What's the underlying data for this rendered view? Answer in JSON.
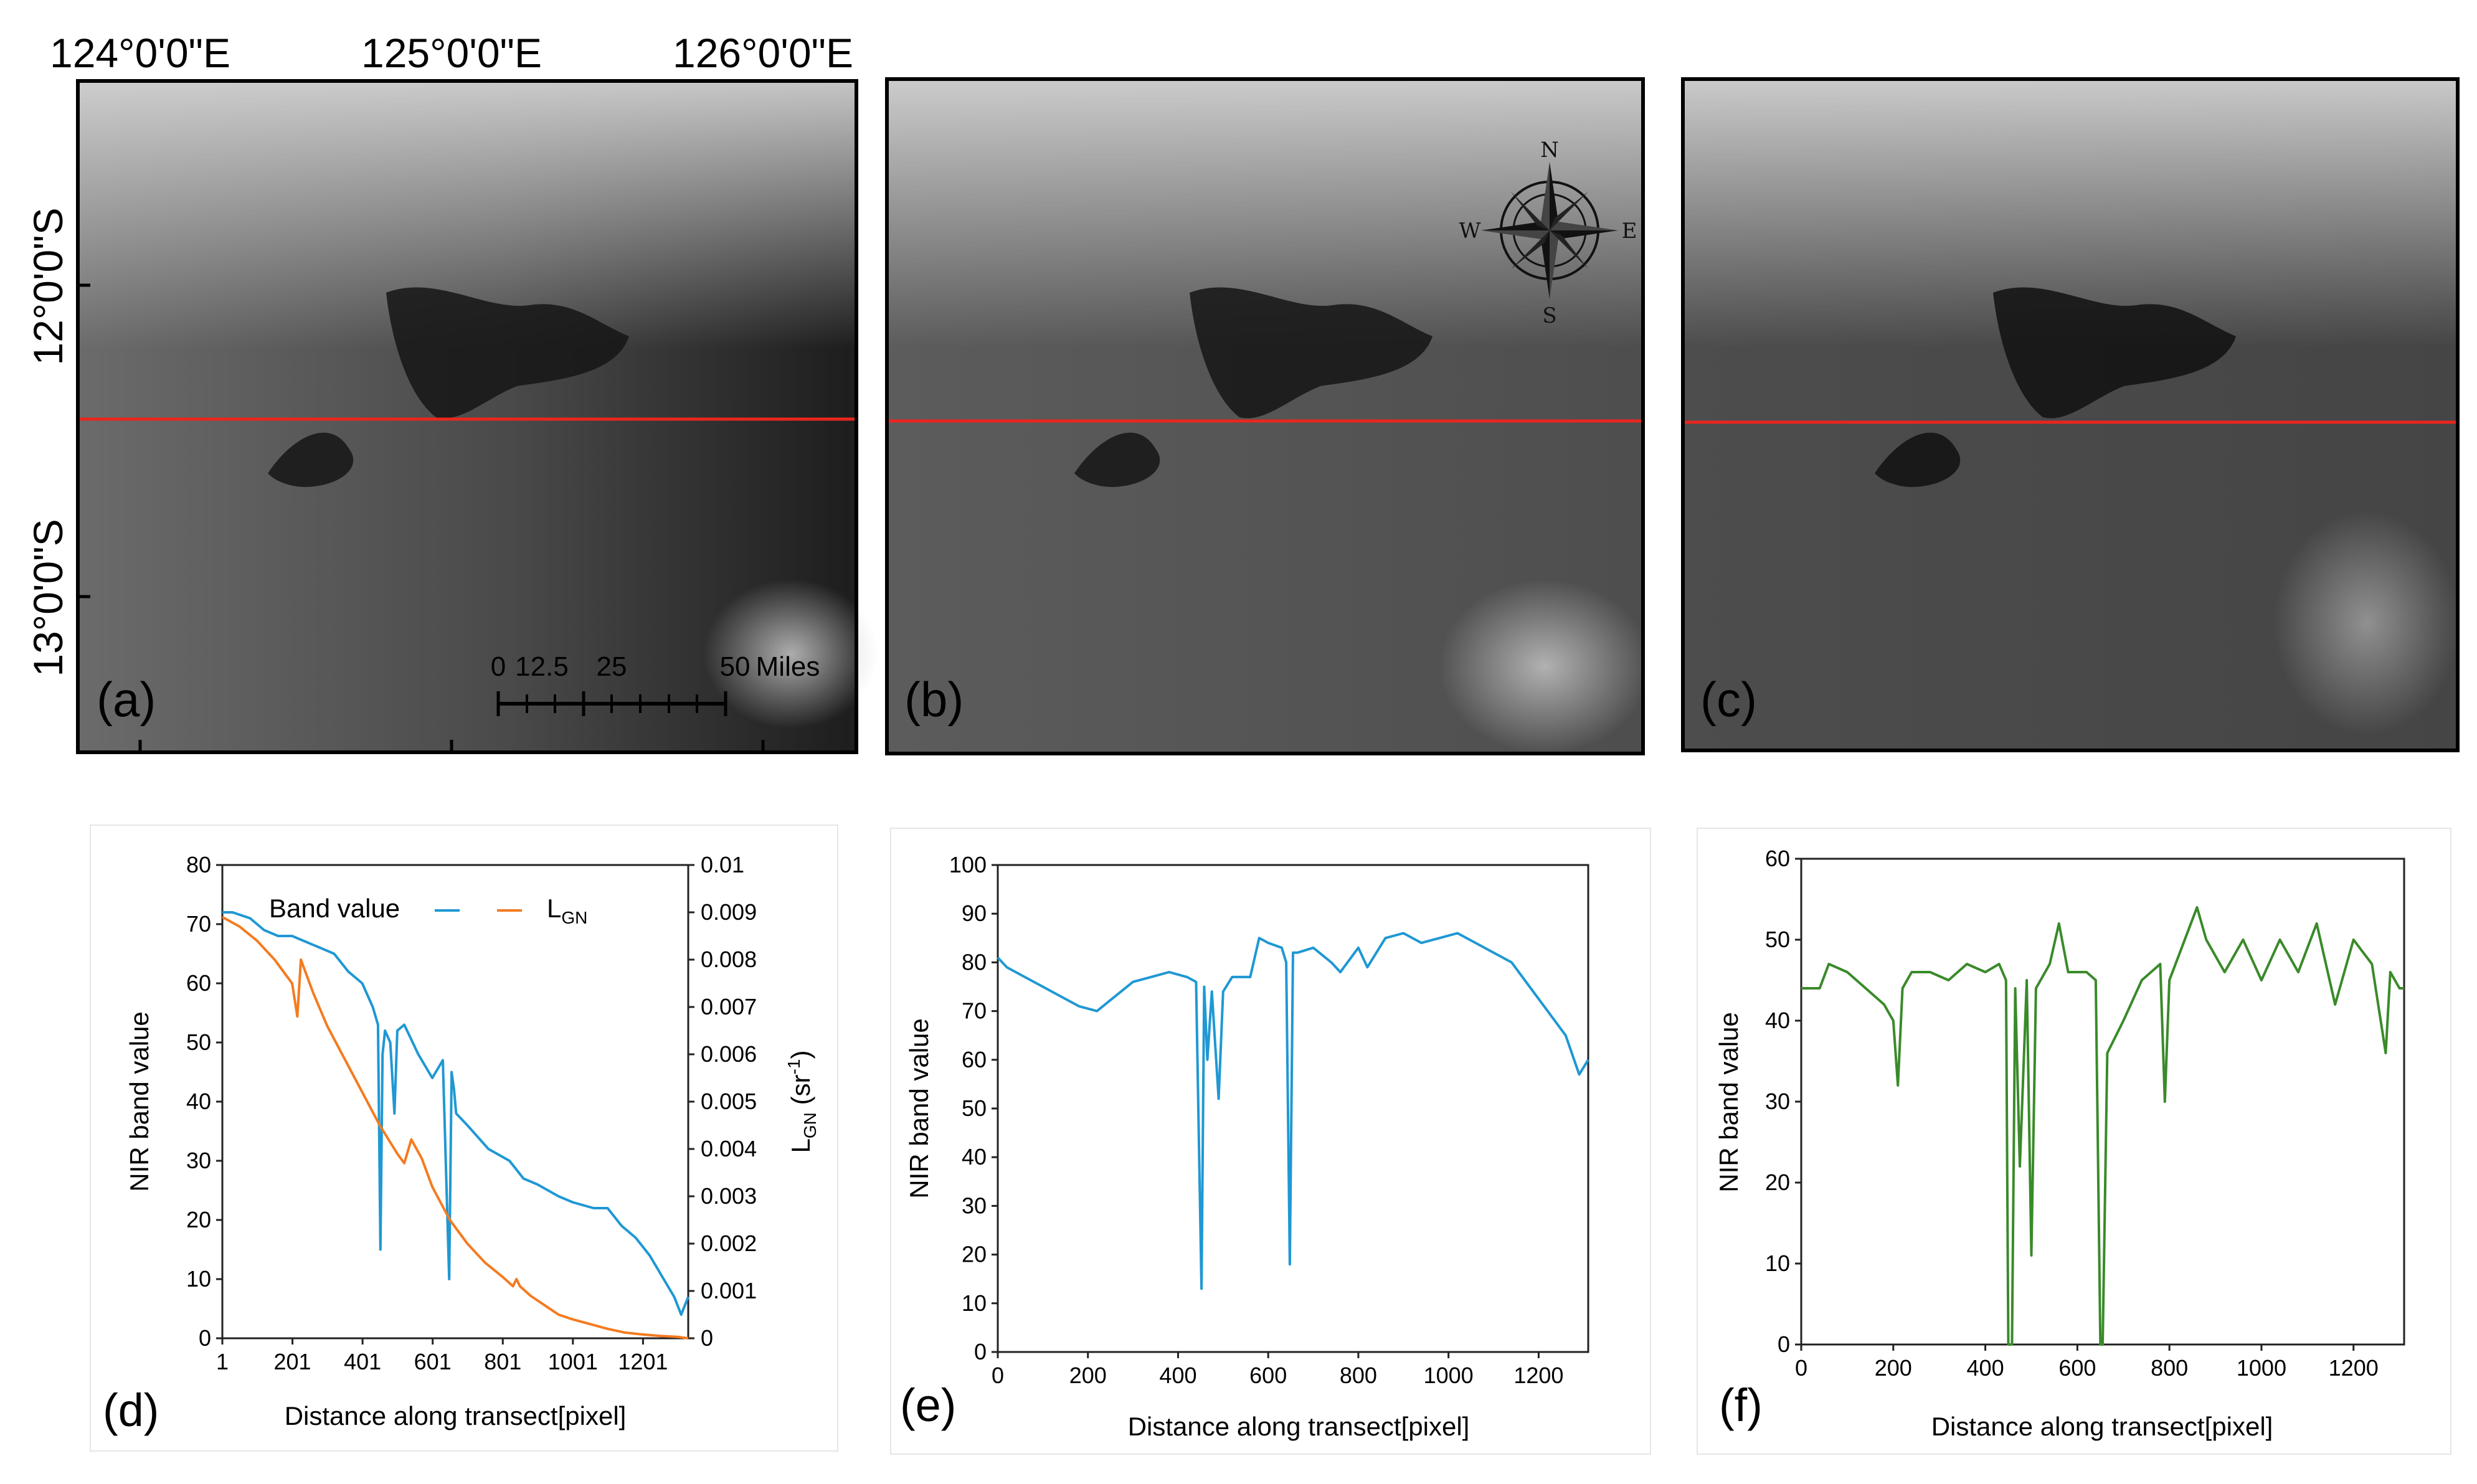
{
  "map_panels": {
    "lon_labels": [
      "124°0'0\"E",
      "125°0'0\"E",
      "126°0'0\"E"
    ],
    "lat_labels": [
      "12°0'0\"S",
      "13°0'0\"S"
    ],
    "labels": [
      "(a)",
      "(b)",
      "(c)"
    ],
    "scale_bar": {
      "numbers": [
        "0",
        "12.5",
        "25",
        "50"
      ],
      "unit": "Miles"
    },
    "compass": {
      "n": "N",
      "e": "E",
      "s": "S",
      "w": "W"
    },
    "transect_color": "#e8261f"
  },
  "chart_data": [
    {
      "panel": "(d)",
      "type": "line",
      "xlabel": "Distance along transect[pixel]",
      "ylabel": "NIR band value",
      "y2label": "L",
      "y2label_sub": "GN",
      "y2label_unit": " (sr",
      "y2label_sup": "-1",
      "y2label_close": ")",
      "xlim": [
        1,
        1330
      ],
      "ylim": [
        0,
        80
      ],
      "y2lim": [
        0,
        0.01
      ],
      "xticks": [
        "1",
        "201",
        "401",
        "601",
        "801",
        "1001",
        "1201"
      ],
      "yticks": [
        "0",
        "10",
        "20",
        "30",
        "40",
        "50",
        "60",
        "70",
        "80"
      ],
      "y2ticks": [
        "0",
        "0.001",
        "0.002",
        "0.003",
        "0.004",
        "0.005",
        "0.006",
        "0.007",
        "0.008",
        "0.009",
        "0.01"
      ],
      "legend_band": "Band value",
      "legend_lgn": "L",
      "legend_lgn_sub": "GN",
      "series": [
        {
          "name": "Band value",
          "axis": "left",
          "color": "#1f98d3",
          "x": [
            1,
            30,
            80,
            120,
            160,
            200,
            240,
            280,
            320,
            360,
            400,
            430,
            445,
            452,
            458,
            465,
            480,
            492,
            500,
            520,
            560,
            600,
            630,
            648,
            655,
            662,
            668,
            700,
            760,
            820,
            860,
            900,
            960,
            1000,
            1060,
            1100,
            1140,
            1180,
            1220,
            1260,
            1290,
            1310,
            1330
          ],
          "y": [
            72,
            72,
            71,
            69,
            68,
            68,
            67,
            66,
            65,
            62,
            60,
            56,
            53,
            15,
            48,
            52,
            50,
            38,
            52,
            53,
            48,
            44,
            47,
            10,
            45,
            42,
            38,
            36,
            32,
            30,
            27,
            26,
            24,
            23,
            22,
            22,
            19,
            17,
            14,
            10,
            7,
            4,
            7
          ]
        },
        {
          "name": "LGN",
          "axis": "right",
          "color": "#f47b20",
          "x": [
            1,
            50,
            100,
            150,
            200,
            215,
            225,
            235,
            260,
            300,
            350,
            400,
            450,
            500,
            520,
            540,
            555,
            570,
            600,
            650,
            700,
            750,
            800,
            830,
            840,
            850,
            880,
            920,
            960,
            1000,
            1050,
            1100,
            1150,
            1200,
            1250,
            1300,
            1330
          ],
          "y": [
            0.0089,
            0.0087,
            0.0084,
            0.008,
            0.0075,
            0.0068,
            0.008,
            0.0078,
            0.0073,
            0.0066,
            0.0059,
            0.0052,
            0.0045,
            0.0039,
            0.0037,
            0.0042,
            0.004,
            0.0038,
            0.0032,
            0.0025,
            0.002,
            0.0016,
            0.0013,
            0.0011,
            0.00125,
            0.0011,
            0.0009,
            0.0007,
            0.0005,
            0.0004,
            0.0003,
            0.0002,
            0.00012,
            8e-05,
            5e-05,
            3e-05,
            0.0
          ]
        }
      ]
    },
    {
      "panel": "(e)",
      "type": "line",
      "xlabel": "Distance along transect[pixel]",
      "ylabel": "NIR band  value",
      "xlim": [
        0,
        1310
      ],
      "ylim": [
        0,
        100
      ],
      "xticks": [
        "0",
        "200",
        "400",
        "600",
        "800",
        "1000",
        "1200"
      ],
      "yticks": [
        "0",
        "10",
        "20",
        "30",
        "40",
        "50",
        "60",
        "70",
        "80",
        "90",
        "100"
      ],
      "series": [
        {
          "name": "NIR band value",
          "color": "#1f98d3",
          "x": [
            0,
            20,
            60,
            100,
            140,
            180,
            220,
            260,
            300,
            340,
            380,
            420,
            440,
            452,
            458,
            465,
            475,
            490,
            500,
            520,
            560,
            580,
            600,
            630,
            640,
            648,
            655,
            665,
            700,
            740,
            760,
            800,
            820,
            860,
            900,
            940,
            980,
            1020,
            1060,
            1100,
            1140,
            1180,
            1220,
            1260,
            1290,
            1310
          ],
          "y": [
            81,
            79,
            77,
            75,
            73,
            71,
            70,
            73,
            76,
            77,
            78,
            77,
            76,
            13,
            75,
            60,
            74,
            52,
            74,
            77,
            77,
            85,
            84,
            83,
            80,
            18,
            82,
            82,
            83,
            80,
            78,
            83,
            79,
            85,
            86,
            84,
            85,
            86,
            84,
            82,
            80,
            75,
            70,
            65,
            57,
            60
          ]
        }
      ]
    },
    {
      "panel": "(f)",
      "type": "line",
      "xlabel": "Distance along transect[pixel]",
      "ylabel": "NIR band value",
      "xlim": [
        0,
        1310
      ],
      "ylim": [
        0,
        60
      ],
      "xticks": [
        "0",
        "200",
        "400",
        "600",
        "800",
        "1000",
        "1200"
      ],
      "yticks": [
        "0",
        "10",
        "20",
        "30",
        "40",
        "50",
        "60"
      ],
      "series": [
        {
          "name": "NIR band value",
          "color": "#3a8a2a",
          "x": [
            0,
            40,
            60,
            100,
            140,
            180,
            200,
            210,
            220,
            240,
            280,
            320,
            360,
            400,
            430,
            445,
            450,
            458,
            465,
            475,
            490,
            500,
            510,
            540,
            560,
            580,
            600,
            620,
            640,
            650,
            655,
            665,
            700,
            740,
            780,
            790,
            800,
            840,
            860,
            880,
            920,
            960,
            1000,
            1040,
            1080,
            1120,
            1160,
            1200,
            1240,
            1270,
            1280,
            1300,
            1310
          ],
          "y": [
            44,
            44,
            47,
            46,
            44,
            42,
            40,
            32,
            44,
            46,
            46,
            45,
            47,
            46,
            47,
            45,
            0,
            0,
            44,
            22,
            45,
            11,
            44,
            47,
            52,
            46,
            46,
            46,
            45,
            0,
            0,
            36,
            40,
            45,
            47,
            30,
            45,
            51,
            54,
            50,
            46,
            50,
            45,
            50,
            46,
            52,
            42,
            50,
            47,
            36,
            46,
            44,
            44
          ]
        }
      ]
    }
  ]
}
